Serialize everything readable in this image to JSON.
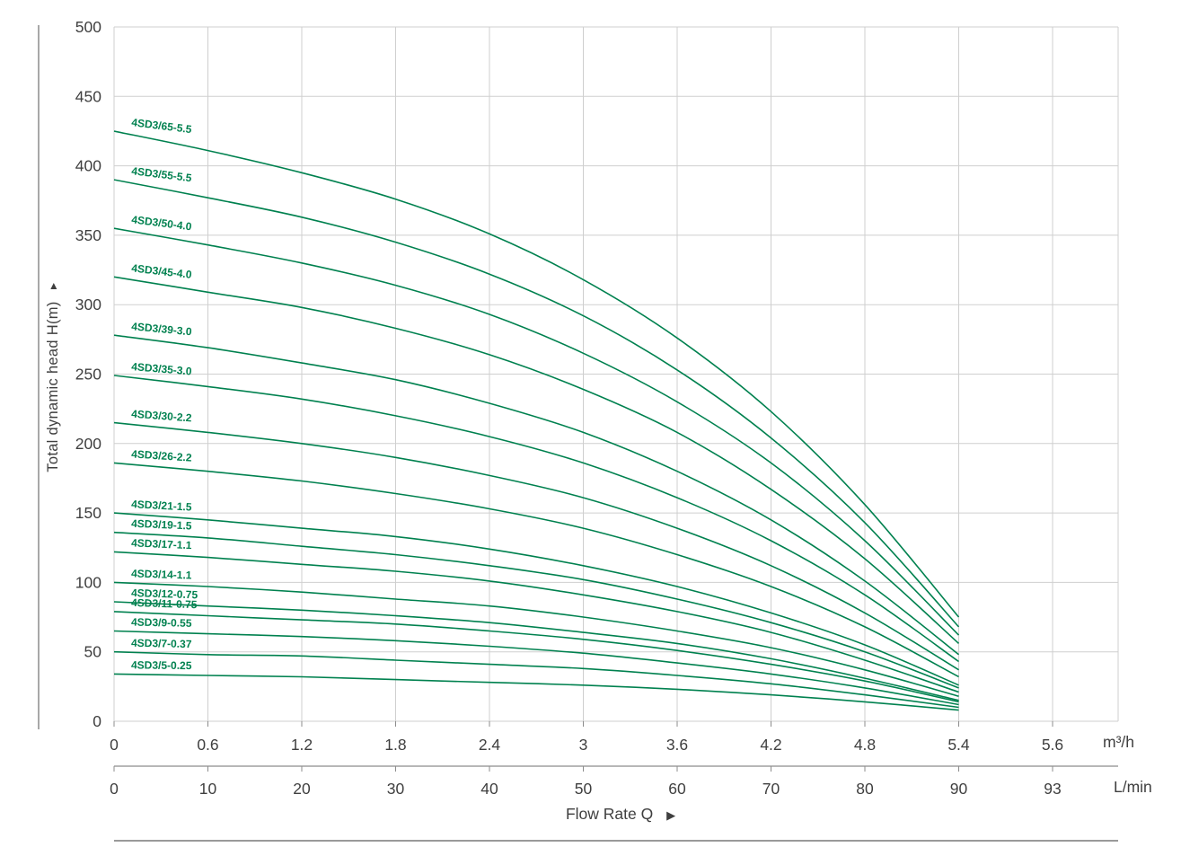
{
  "chart_data": {
    "type": "line",
    "title": "",
    "ylabel": "Total dynamic head H(m)",
    "ylabel_arrow": "▲",
    "xlabel": "Flow Rate Q",
    "xlabel_arrow": "▶",
    "ylim": [
      0,
      500
    ],
    "grid": true,
    "legend_position": "none",
    "curve_color": "#00814F",
    "grid_color": "#cfcfcf",
    "axis_color": "#8c8c8c",
    "text_color": "#3f3f3f",
    "y_ticks": [
      0,
      50,
      100,
      150,
      200,
      250,
      300,
      350,
      400,
      450,
      500
    ],
    "x_axis_m3h": {
      "unit": "m³/h",
      "ticks": [
        "0",
        "0.6",
        "1.2",
        "1.8",
        "2.4",
        "3",
        "3.6",
        "4.2",
        "4.8",
        "5.4",
        "5.6"
      ]
    },
    "x_axis_lmin": {
      "unit": "L/min",
      "ticks": [
        "0",
        "10",
        "20",
        "30",
        "40",
        "50",
        "60",
        "70",
        "80",
        "90",
        "93"
      ]
    },
    "x_values_m3h": [
      0,
      0.6,
      1.2,
      1.8,
      2.4,
      3.0,
      3.6,
      4.2,
      4.8,
      5.4
    ],
    "series": [
      {
        "name": "4SD3/65-5.5",
        "values": [
          425,
          411,
          395,
          376,
          351,
          318,
          276,
          223,
          156,
          75
        ]
      },
      {
        "name": "4SD3/55-5.5",
        "values": [
          390,
          377,
          363,
          345,
          322,
          292,
          253,
          204,
          143,
          68
        ]
      },
      {
        "name": "4SD3/50-4.0",
        "values": [
          355,
          343,
          330,
          314,
          293,
          265,
          230,
          186,
          130,
          62
        ]
      },
      {
        "name": "4SD3/45-4.0",
        "values": [
          320,
          309,
          298,
          283,
          264,
          239,
          208,
          167,
          117,
          56
        ]
      },
      {
        "name": "4SD3/39-3.0",
        "values": [
          278,
          269,
          258,
          246,
          229,
          208,
          180,
          145,
          101,
          48
        ]
      },
      {
        "name": "4SD3/35-3.0",
        "values": [
          249,
          241,
          232,
          220,
          205,
          186,
          161,
          130,
          91,
          43
        ]
      },
      {
        "name": "4SD3/30-2.2",
        "values": [
          215,
          208,
          200,
          190,
          177,
          161,
          139,
          112,
          78,
          37
        ]
      },
      {
        "name": "4SD3/26-2.2",
        "values": [
          186,
          180,
          173,
          164,
          153,
          139,
          120,
          97,
          68,
          32
        ]
      },
      {
        "name": "4SD3/21-1.5",
        "values": [
          150,
          145,
          139,
          133,
          124,
          112,
          97,
          78,
          55,
          26
        ]
      },
      {
        "name": "4SD3/19-1.5",
        "values": [
          136,
          132,
          126,
          120,
          112,
          102,
          88,
          71,
          50,
          24
        ]
      },
      {
        "name": "4SD3/17-1.1",
        "values": [
          122,
          118,
          113,
          108,
          101,
          91,
          79,
          64,
          44,
          21
        ]
      },
      {
        "name": "4SD3/14-1.1",
        "values": [
          100,
          97,
          93,
          88,
          83,
          75,
          65,
          53,
          37,
          18
        ]
      },
      {
        "name": "4SD3/12-0.75",
        "values": [
          86,
          83,
          80,
          76,
          71,
          64,
          56,
          45,
          31,
          15
        ]
      },
      {
        "name": "4SD3/11-0.75",
        "values": [
          79,
          76,
          73,
          70,
          65,
          59,
          51,
          41,
          29,
          14
        ]
      },
      {
        "name": "4SD3/9-0.55",
        "values": [
          65,
          63,
          61,
          58,
          54,
          49,
          42,
          34,
          24,
          12
        ]
      },
      {
        "name": "4SD3/7-0.37",
        "values": [
          50,
          48,
          47,
          44,
          41,
          38,
          33,
          27,
          19,
          10
        ]
      },
      {
        "name": "4SD3/5-0.25",
        "values": [
          34,
          33,
          32,
          30,
          28,
          26,
          23,
          19,
          14,
          8
        ]
      }
    ]
  }
}
